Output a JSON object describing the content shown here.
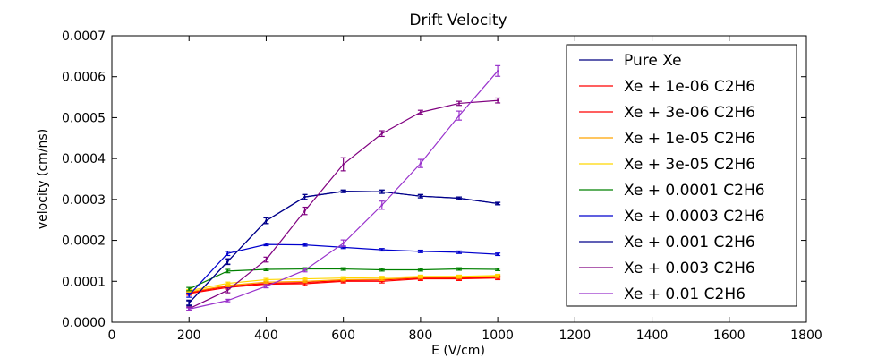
{
  "chart_data": {
    "type": "line",
    "title": "Drift Velocity",
    "xlabel": "E (V/cm)",
    "ylabel": "velocity (cm/ns)",
    "xlim": [
      0,
      1800
    ],
    "ylim": [
      0,
      0.0007
    ],
    "xticks": [
      0,
      200,
      400,
      600,
      800,
      1000,
      1200,
      1400,
      1600,
      1800
    ],
    "xtick_labels": [
      "0",
      "200",
      "400",
      "600",
      "800",
      "1000",
      "1200",
      "1400",
      "1600",
      "1800"
    ],
    "yticks": [
      0,
      0.0001,
      0.0002,
      0.0003,
      0.0004,
      0.0005,
      0.0006,
      0.0007
    ],
    "ytick_labels": [
      "0.0000",
      "0.0001",
      "0.0002",
      "0.0003",
      "0.0004",
      "0.0005",
      "0.0006",
      "0.0007"
    ],
    "grid": false,
    "legend_position": "top-right",
    "x": [
      200,
      300,
      400,
      500,
      600,
      700,
      800,
      900,
      1000
    ],
    "series": [
      {
        "name": "Pure Xe",
        "color": "#000080",
        "values": [
          4.7e-05,
          0.000148,
          0.000248,
          0.000306,
          0.00032,
          0.000319,
          0.000308,
          0.000303,
          0.00029
        ],
        "errors": [
          7e-06,
          7e-06,
          7e-06,
          6e-06,
          3e-06,
          4e-06,
          4e-06,
          3e-06,
          3e-06
        ]
      },
      {
        "name": "Xe + 1e-06 C2H6",
        "color": "#ff0000",
        "values": [
          7e-05,
          8.5e-05,
          9.3e-05,
          9.4e-05,
          0.0001,
          0.0001,
          0.000106,
          0.000106,
          0.000108
        ],
        "errors": [
          4e-06,
          4e-06,
          4e-06,
          4e-06,
          4e-06,
          4e-06,
          4e-06,
          4e-06,
          4e-06
        ]
      },
      {
        "name": "Xe + 3e-06 C2H6",
        "color": "#ff0000",
        "values": [
          7.2e-05,
          8.8e-05,
          9.5e-05,
          9.7e-05,
          0.000102,
          0.000103,
          0.000108,
          0.000108,
          0.00011
        ],
        "errors": [
          3e-06,
          3e-06,
          3e-06,
          3e-06,
          3e-06,
          3e-06,
          3e-06,
          3e-06,
          3e-06
        ]
      },
      {
        "name": "Xe + 1e-05 C2H6",
        "color": "#ffa500",
        "values": [
          7.4e-05,
          9e-05,
          9.8e-05,
          0.0001,
          0.000104,
          0.000105,
          0.00011,
          0.00011,
          0.000112
        ],
        "errors": [
          3e-06,
          3e-06,
          3e-06,
          3e-06,
          3e-06,
          3e-06,
          3e-06,
          3e-06,
          3e-06
        ]
      },
      {
        "name": "Xe + 3e-05 C2H6",
        "color": "#ffd700",
        "values": [
          7.7e-05,
          9.5e-05,
          0.000104,
          0.000106,
          0.000108,
          0.000109,
          0.000112,
          0.000112,
          0.000114
        ],
        "errors": [
          3e-06,
          3e-06,
          3e-06,
          3e-06,
          3e-06,
          3e-06,
          3e-06,
          3e-06,
          3e-06
        ]
      },
      {
        "name": "Xe + 0.0001 C2H6",
        "color": "#008000",
        "values": [
          8.1e-05,
          0.000125,
          0.000129,
          0.00013,
          0.00013,
          0.000128,
          0.000128,
          0.00013,
          0.000129
        ],
        "errors": [
          4e-06,
          4e-06,
          3e-06,
          3e-06,
          3e-06,
          3e-06,
          3e-06,
          3e-06,
          3e-06
        ]
      },
      {
        "name": "Xe + 0.0003 C2H6",
        "color": "#0000cd",
        "values": [
          6.6e-05,
          0.000168,
          0.00019,
          0.000189,
          0.000183,
          0.000177,
          0.000173,
          0.000171,
          0.000166
        ],
        "errors": [
          5e-06,
          5e-06,
          3e-06,
          3e-06,
          3e-06,
          3e-06,
          3e-06,
          3e-06,
          3e-06
        ]
      },
      {
        "name": "Xe + 0.001 C2H6",
        "color": "#00008b",
        "values": [
          4.7e-05,
          0.000148,
          0.000248,
          0.000306,
          0.00032,
          0.000319,
          0.000308,
          0.000303,
          0.00029
        ],
        "errors": [
          5e-06,
          6e-06,
          7e-06,
          6e-06,
          3e-06,
          4e-06,
          4e-06,
          3e-06,
          3e-06
        ]
      },
      {
        "name": "Xe + 0.003 C2H6",
        "color": "#800080",
        "values": [
          3.3e-05,
          7.8e-05,
          0.000153,
          0.000272,
          0.000386,
          0.000461,
          0.000513,
          0.000535,
          0.000542
        ],
        "errors": [
          4e-06,
          6e-06,
          6e-06,
          9e-06,
          1.6e-05,
          7e-06,
          5e-06,
          5e-06,
          6e-06
        ]
      },
      {
        "name": "Xe + 0.01 C2H6",
        "color": "#9932cc",
        "values": [
          3.2e-05,
          5.3e-05,
          8.8e-05,
          0.000127,
          0.000193,
          0.000286,
          0.000388,
          0.000505,
          0.000614
        ],
        "errors": [
          3e-06,
          3e-06,
          4e-06,
          4e-06,
          8e-06,
          1e-05,
          1e-05,
          1.1e-05,
          1.3e-05
        ]
      }
    ]
  }
}
